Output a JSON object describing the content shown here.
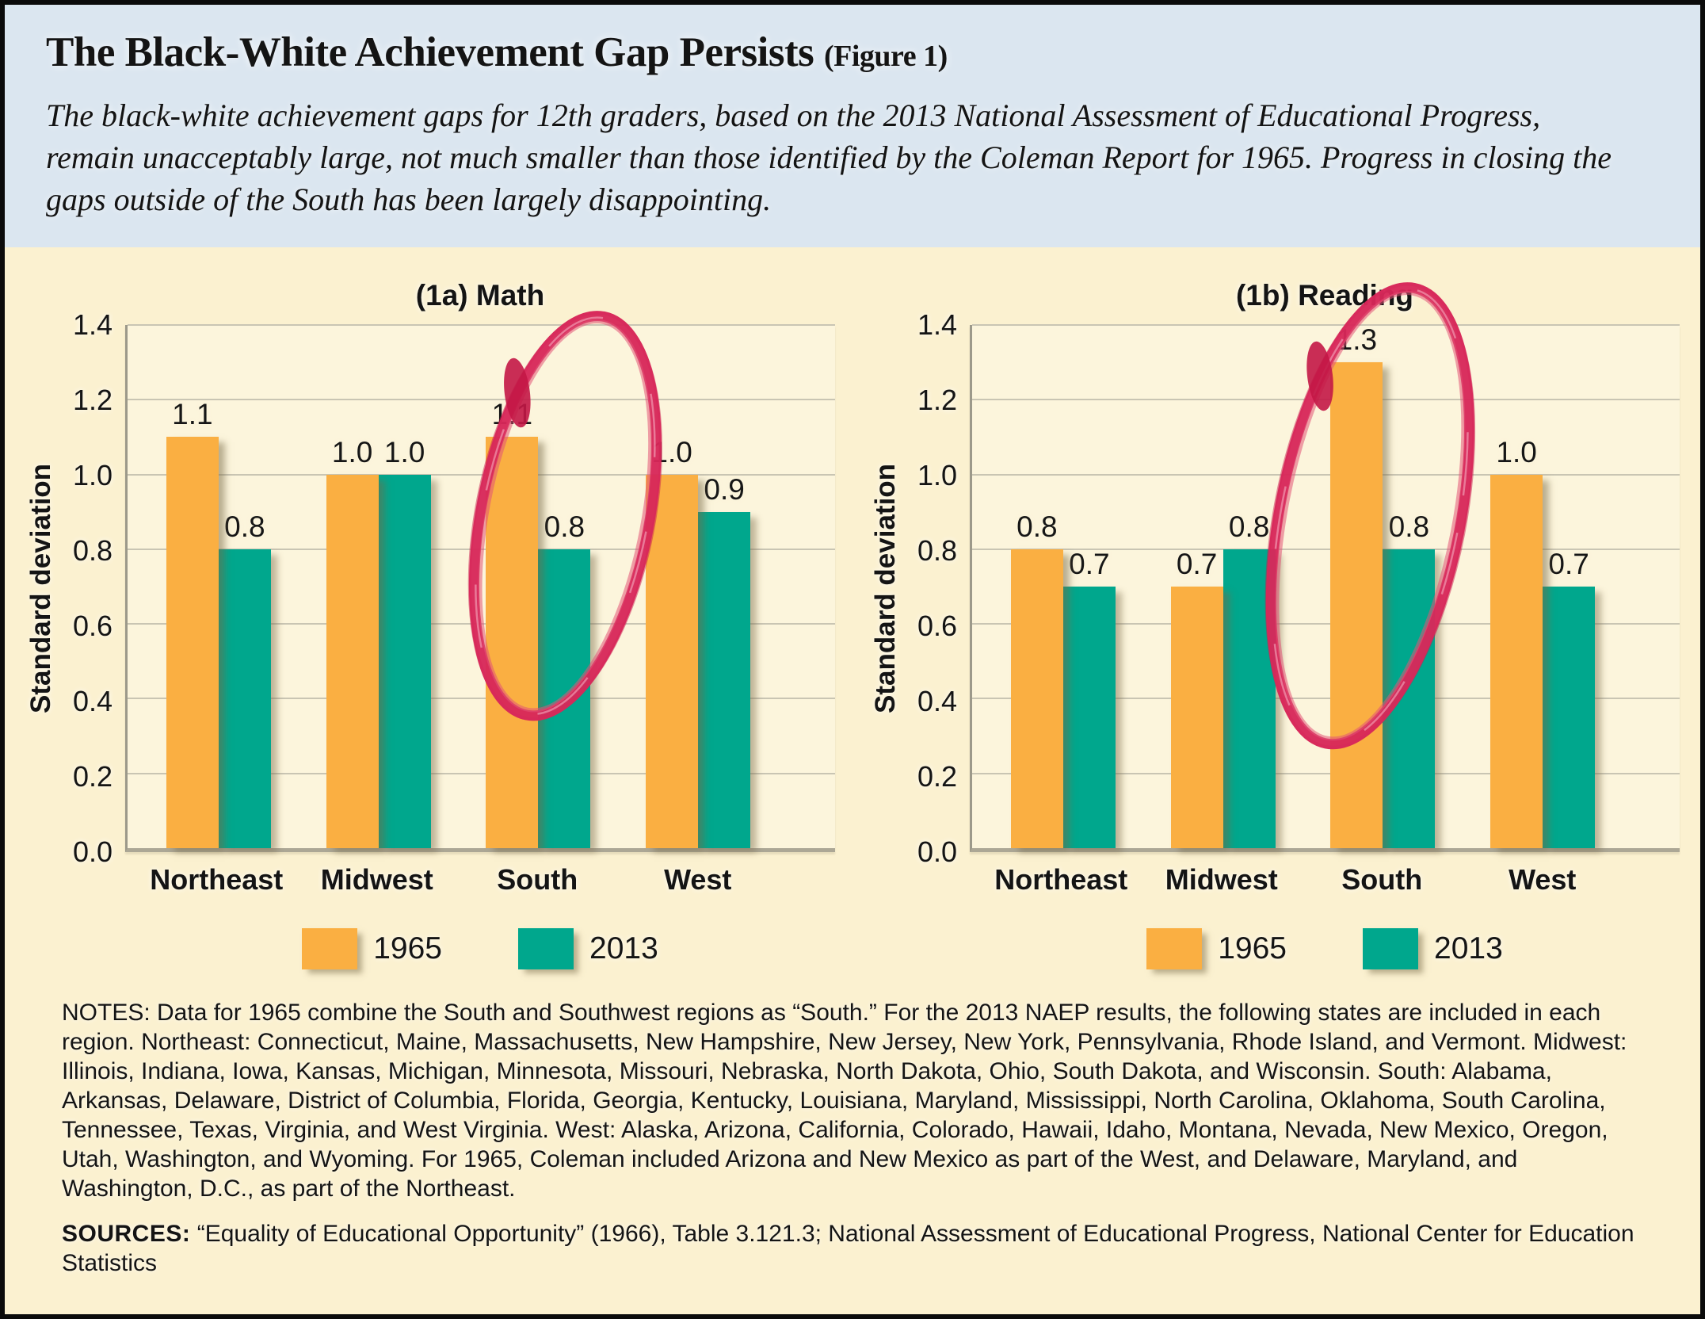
{
  "header": {
    "title": "The Black-White Achievement Gap Persists",
    "figure_tag": "(Figure 1)",
    "subtitle": "The black-white achievement gaps for 12th graders, based on the 2013 National Assessment of Educational Progress, remain unacceptably large, not much smaller than those identified by the Coleman Report for 1965. Progress in closing the gaps outside of the South has been largely disappointing."
  },
  "chart_data": [
    {
      "type": "bar",
      "title": "(1a) Math",
      "ylabel": "Standard deviation",
      "ylim": [
        0,
        1.4
      ],
      "yticks": [
        "0.0",
        "0.2",
        "0.4",
        "0.6",
        "0.8",
        "1.0",
        "1.2",
        "1.4"
      ],
      "grid": true,
      "categories": [
        "Northeast",
        "Midwest",
        "South",
        "West"
      ],
      "series": [
        {
          "name": "1965",
          "color": "#faaf42",
          "values": [
            1.1,
            1.0,
            1.1,
            1.0
          ]
        },
        {
          "name": "2013",
          "color": "#00a78d",
          "values": [
            0.8,
            1.0,
            0.8,
            0.9
          ]
        }
      ],
      "annotation": {
        "type": "hand-drawn-circle",
        "target_category": "South",
        "color": "#d7285a"
      }
    },
    {
      "type": "bar",
      "title": "(1b) Reading",
      "ylabel": "Standard deviation",
      "ylim": [
        0,
        1.4
      ],
      "yticks": [
        "0.0",
        "0.2",
        "0.4",
        "0.6",
        "0.8",
        "1.0",
        "1.2",
        "1.4"
      ],
      "grid": true,
      "categories": [
        "Northeast",
        "Midwest",
        "South",
        "West"
      ],
      "series": [
        {
          "name": "1965",
          "color": "#faaf42",
          "values": [
            0.8,
            0.7,
            1.3,
            1.0
          ]
        },
        {
          "name": "2013",
          "color": "#00a78d",
          "values": [
            0.7,
            0.8,
            0.8,
            0.7
          ]
        }
      ],
      "annotation": {
        "type": "hand-drawn-circle",
        "target_category": "South",
        "color": "#d7285a"
      }
    }
  ],
  "legend": {
    "position": "bottom-center",
    "items": [
      {
        "label": "1965",
        "color": "#faaf42"
      },
      {
        "label": "2013",
        "color": "#00a78d"
      }
    ]
  },
  "notes": "NOTES: Data for 1965 combine the South and Southwest regions as “South.” For the 2013 NAEP results, the following states are included in each region. Northeast: Connecticut, Maine, Massachusetts, New Hampshire, New Jersey, New York, Pennsylvania, Rhode Island, and Vermont. Midwest: Illinois, Indiana, Iowa, Kansas, Michigan, Minnesota, Missouri, Nebraska, North Dakota, Ohio, South Dakota, and Wisconsin. South: Alabama, Arkansas, Delaware, District of Columbia, Florida, Georgia, Kentucky, Louisiana, Maryland, Mississippi, North Carolina, Oklahoma, South Carolina, Tennessee, Texas, Virginia, and West Virginia. West: Alaska, Arizona, California, Colorado, Hawaii, Idaho, Montana, Nevada, New Mexico, Oregon, Utah, Washington, and Wyoming. For 1965, Coleman included Arizona and New Mexico as part of the West, and Delaware, Maryland, and Washington, D.C., as part of the Northeast.",
  "sources_label": "SOURCES:",
  "sources_text": "“Equality of Educational Opportunity” (1966), Table 3.121.3; National Assessment of Educational Progress, National Center for Education Statistics",
  "colors": {
    "header_bg": "#dbe6f0",
    "body_bg": "#fbf1d0",
    "plot_bg": "#fcf5dc",
    "series_1965": "#faaf42",
    "series_2013": "#00a78d",
    "annotation_red": "#d7285a",
    "gridline": "#c9c5b3",
    "text": "#141414"
  }
}
